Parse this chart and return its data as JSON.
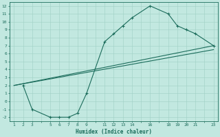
{
  "xlabel": "Humidex (Indice chaleur)",
  "ylabel": "",
  "bg_color": "#c2e8e0",
  "grid_major_color": "#9fcfc5",
  "grid_minor_color": "#b8ddd6",
  "line_color": "#1a6b5a",
  "xlim": [
    0.5,
    23.5
  ],
  "ylim": [
    -2.5,
    12.5
  ],
  "xtick_labels": [
    "1",
    "2",
    "3",
    "5",
    "6",
    "7",
    "8",
    "9",
    "11",
    "12",
    "13",
    "14",
    "16",
    "18",
    "19",
    "20",
    "21",
    "23"
  ],
  "xtick_pos": [
    1,
    2,
    3,
    5,
    6,
    7,
    8,
    9,
    11,
    12,
    13,
    14,
    16,
    18,
    19,
    20,
    21,
    23
  ],
  "ytick_labels": [
    "12",
    "11",
    "10",
    "9",
    "8",
    "7",
    "6",
    "5",
    "4",
    "3",
    "2",
    "1",
    "0",
    "-1",
    "-2"
  ],
  "ytick_pos": [
    12,
    11,
    10,
    9,
    8,
    7,
    6,
    5,
    4,
    3,
    2,
    1,
    0,
    -1,
    -2
  ],
  "curve1_x": [
    2,
    3,
    5,
    6,
    7,
    8,
    9,
    11,
    12,
    13,
    14,
    16,
    18,
    19,
    20,
    21,
    23
  ],
  "curve1_y": [
    2,
    -1,
    -2,
    -2,
    -2,
    -1.5,
    1,
    7.5,
    8.5,
    9.5,
    10.5,
    12,
    11,
    9.5,
    9.0,
    8.5,
    7.0
  ],
  "line2_x": [
    1,
    23
  ],
  "line2_y": [
    2,
    7.0
  ],
  "line3_x": [
    1,
    23
  ],
  "line3_y": [
    2,
    6.5
  ]
}
